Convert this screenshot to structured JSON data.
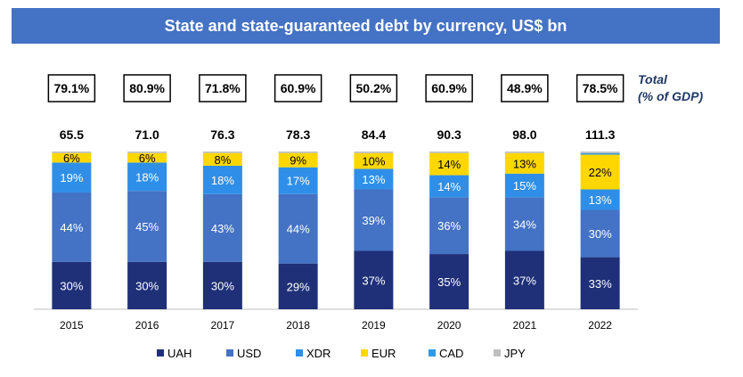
{
  "title": "State and state-guaranteed debt by currency, US$ bn",
  "side_label": {
    "line1": "Total",
    "line2": "(% of GDP)"
  },
  "colors": {
    "title_bg": "#4472c4",
    "UAH": "#1f3078",
    "USD": "#4472c4",
    "XDR": "#2f8fe8",
    "EUR": "#ffd700",
    "CAD": "#2e9be6",
    "JPY": "#bfbfbf"
  },
  "chart_data": {
    "type": "bar",
    "stacked": "percent",
    "categories": [
      "2015",
      "2016",
      "2017",
      "2018",
      "2019",
      "2020",
      "2021",
      "2022"
    ],
    "totals": [
      "65.5",
      "71.0",
      "76.3",
      "78.3",
      "84.4",
      "90.3",
      "98.0",
      "111.3"
    ],
    "gdp_share": [
      "79.1%",
      "80.9%",
      "71.8%",
      "60.9%",
      "50.2%",
      "60.9%",
      "48.9%",
      "78.5%"
    ],
    "series": [
      {
        "name": "UAH",
        "values": [
          30,
          30,
          30,
          29,
          37,
          35,
          37,
          33
        ],
        "labels": [
          "30%",
          "30%",
          "30%",
          "29%",
          "37%",
          "35%",
          "37%",
          "33%"
        ]
      },
      {
        "name": "USD",
        "values": [
          44,
          45,
          43,
          44,
          39,
          36,
          34,
          30
        ],
        "labels": [
          "44%",
          "45%",
          "43%",
          "44%",
          "39%",
          "36%",
          "34%",
          "30%"
        ]
      },
      {
        "name": "XDR",
        "values": [
          19,
          18,
          18,
          17,
          13,
          14,
          15,
          13
        ],
        "labels": [
          "19%",
          "18%",
          "18%",
          "17%",
          "13%",
          "14%",
          "15%",
          "13%"
        ]
      },
      {
        "name": "EUR",
        "values": [
          6,
          6,
          8,
          9,
          10,
          14,
          13,
          22
        ],
        "labels": [
          "6%",
          "6%",
          "8%",
          "9%",
          "10%",
          "14%",
          "13%",
          "22%"
        ]
      },
      {
        "name": "CAD",
        "values": [
          0,
          0,
          0,
          0,
          0,
          0,
          0,
          1
        ],
        "labels": [
          "",
          "",
          "",
          "",
          "",
          "",
          "",
          ""
        ]
      },
      {
        "name": "JPY",
        "values": [
          1,
          1,
          1,
          1,
          1,
          1,
          1,
          1
        ],
        "labels": [
          "",
          "",
          "",
          "",
          "",
          "",
          "",
          ""
        ]
      }
    ],
    "legend": [
      "UAH",
      "USD",
      "XDR",
      "EUR",
      "CAD",
      "JPY"
    ],
    "legend_position": "bottom",
    "grid": false
  }
}
